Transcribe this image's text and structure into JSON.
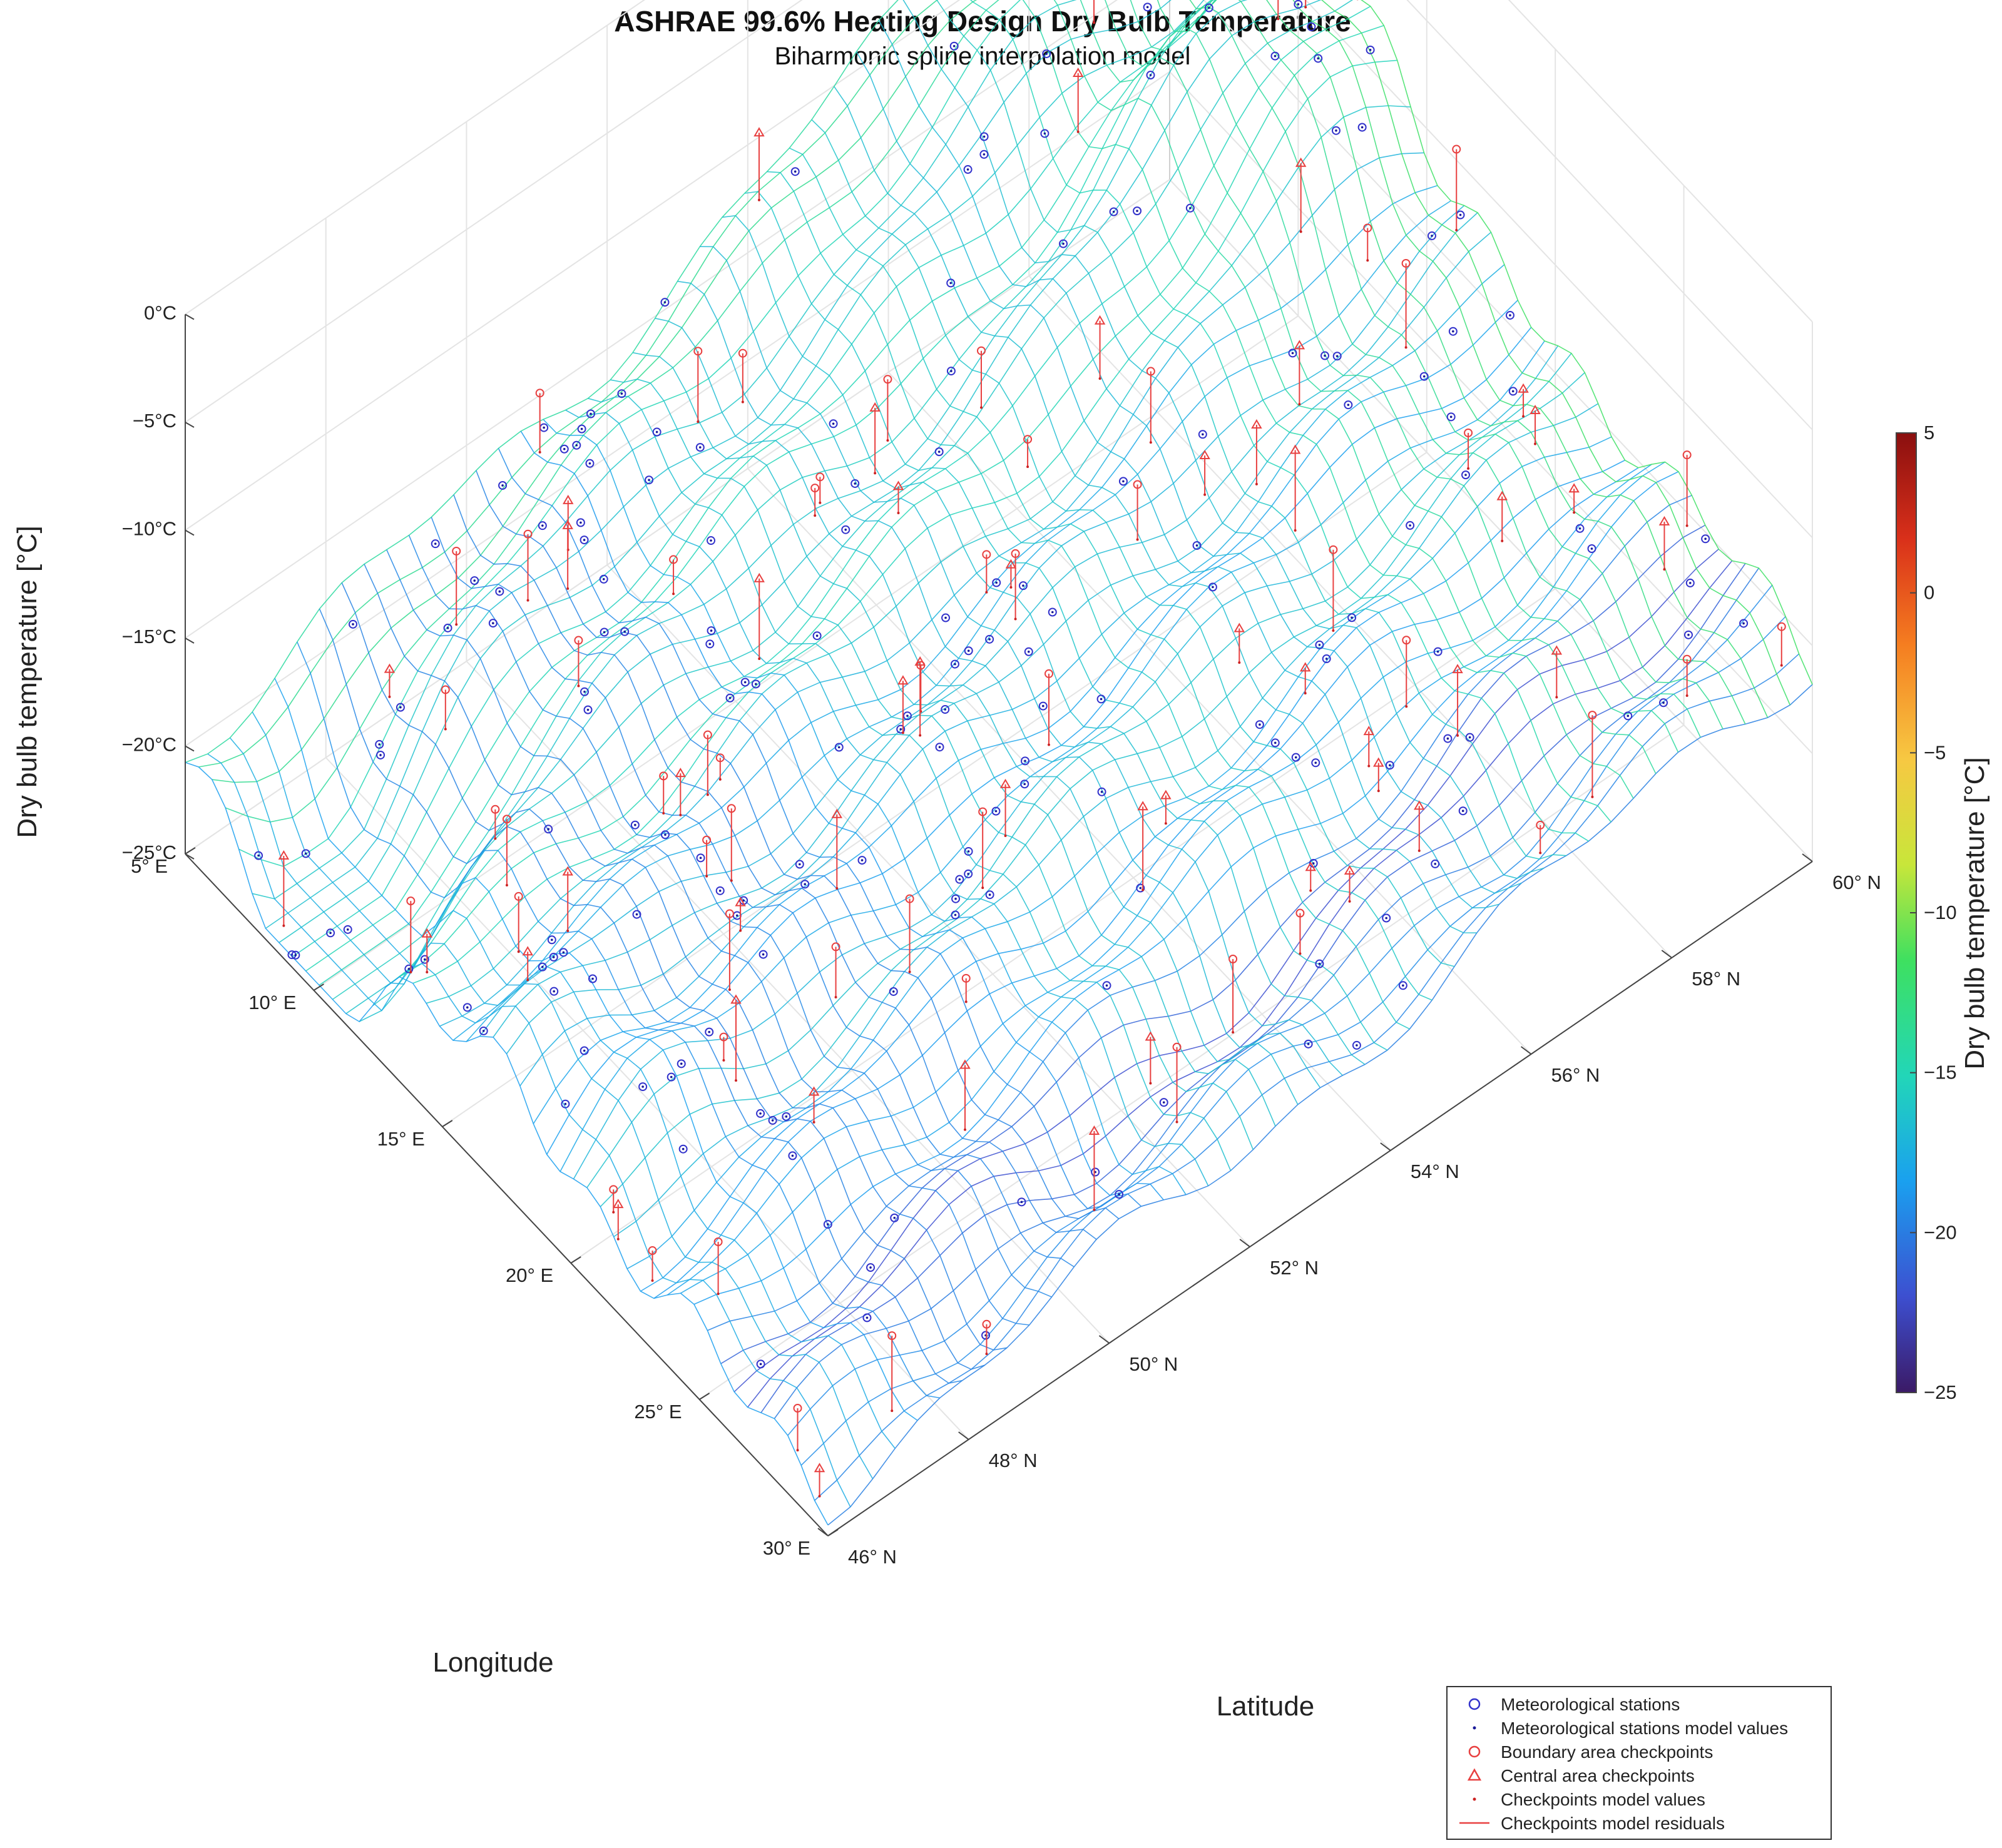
{
  "chart_data": {
    "type": "surface3d",
    "title": "ASHRAE 99.6% Heating Design Dry Bulb Temperature",
    "subtitle": "Biharmonic spline interpolation model",
    "zlabel": "Dry bulb temperature [°C]",
    "xlabel": "Longitude",
    "ylabel": "Latitude",
    "colorbar_label": "Dry bulb temperature [°C]",
    "z_ticks": [
      "0°C",
      "−5°C",
      "−10°C",
      "−15°C",
      "−20°C",
      "−25°C"
    ],
    "z_values": [
      0,
      -5,
      -10,
      -15,
      -20,
      -25
    ],
    "lon_ticks": [
      "5° E",
      "10° E",
      "15° E",
      "20° E",
      "25° E",
      "30° E"
    ],
    "lon_values": [
      5,
      10,
      15,
      20,
      25,
      30
    ],
    "lat_ticks": [
      "46° N",
      "48° N",
      "50° N",
      "52° N",
      "54° N",
      "56° N",
      "58° N",
      "60° N"
    ],
    "lat_values": [
      46,
      48,
      50,
      52,
      54,
      56,
      58,
      60
    ],
    "colorbar_ticks": [
      "5",
      "0",
      "−5",
      "−10",
      "−15",
      "−20",
      "−25"
    ],
    "colorbar_values": [
      5,
      0,
      -5,
      -10,
      -15,
      -20,
      -25
    ],
    "zlim": [
      -25,
      0
    ],
    "clim": [
      -25,
      5
    ],
    "xlim": [
      5,
      30
    ],
    "ylim": [
      46,
      60
    ],
    "colormap": "jet",
    "grid": true,
    "legend_position": "bottom-right",
    "legend": [
      {
        "label": "Meteorological stations",
        "marker": "circle",
        "color": "#3333cc"
      },
      {
        "label": "Meteorological stations model values",
        "marker": "dot",
        "color": "#1a1a99"
      },
      {
        "label": "Boundary area checkpoints",
        "marker": "circle",
        "color": "#e84040"
      },
      {
        "label": "Central area checkpoints",
        "marker": "triangle",
        "color": "#e84040"
      },
      {
        "label": "Checkpoints model values",
        "marker": "dot",
        "color": "#cc2222"
      },
      {
        "label": "Checkpoints model residuals",
        "marker": "line",
        "color": "#e84040"
      }
    ]
  }
}
